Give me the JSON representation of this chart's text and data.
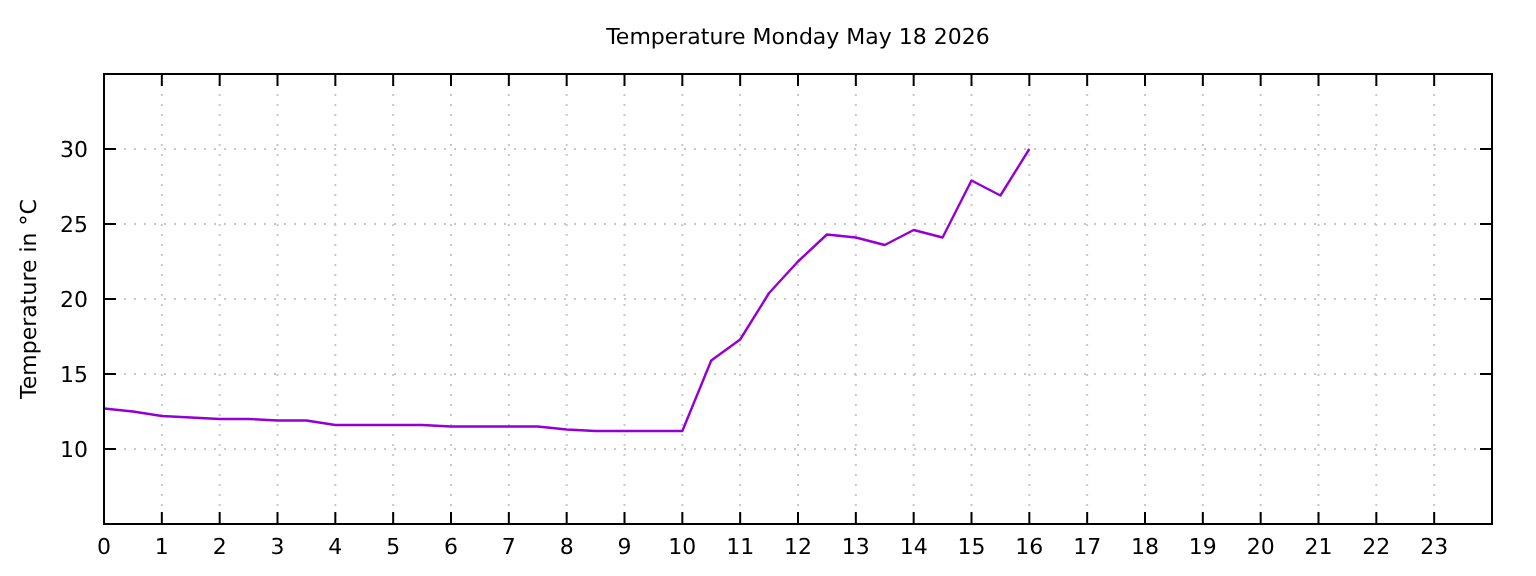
{
  "chart_data": {
    "type": "line",
    "title": "Temperature Monday May 18 2026",
    "ylabel": "Temperature in °C",
    "x": [
      0,
      0.5,
      1,
      1.5,
      2,
      2.5,
      3,
      3.5,
      4,
      4.5,
      5,
      5.5,
      6,
      6.5,
      7,
      7.5,
      8,
      8.5,
      9,
      9.5,
      10,
      10.5,
      11,
      11.5,
      12,
      12.5,
      13,
      13.5,
      14,
      14.5,
      15,
      15.5,
      16
    ],
    "series": [
      {
        "color": "#9400d3",
        "values": [
          12.7,
          12.5,
          12.2,
          12.1,
          12.0,
          12.0,
          11.9,
          11.9,
          11.6,
          11.6,
          11.6,
          11.6,
          11.5,
          11.5,
          11.5,
          11.5,
          11.3,
          11.2,
          11.2,
          11.2,
          11.2,
          15.9,
          17.3,
          20.4,
          22.5,
          24.3,
          24.1,
          23.6,
          24.6,
          24.1,
          27.9,
          26.9,
          30.0
        ]
      }
    ],
    "xlim": [
      0,
      24
    ],
    "xticks": [
      0,
      1,
      2,
      3,
      4,
      5,
      6,
      7,
      8,
      9,
      10,
      11,
      12,
      13,
      14,
      15,
      16,
      17,
      18,
      19,
      20,
      21,
      22,
      23
    ],
    "ylim": [
      5,
      35
    ],
    "yticks": [
      10,
      15,
      20,
      25,
      30
    ],
    "grid": true,
    "marker": "none",
    "line_style": "solid"
  }
}
